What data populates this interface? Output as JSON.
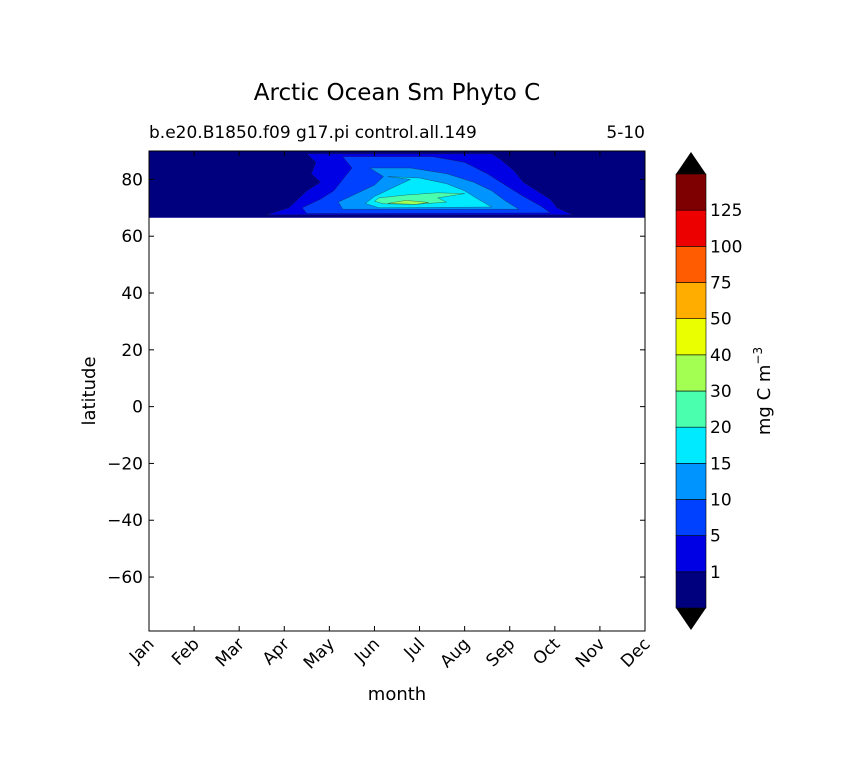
{
  "chart_data": {
    "type": "heatmap",
    "title": "Arctic Ocean Sm Phyto C",
    "subtitle_left": "b.e20.B1850.f09 g17.pi control.all.149",
    "subtitle_right": "5-10",
    "xlabel": "month",
    "ylabel": "latitude",
    "x_categories": [
      "Jan",
      "Feb",
      "Mar",
      "Apr",
      "May",
      "Jun",
      "Jul",
      "Aug",
      "Sep",
      "Oct",
      "Nov",
      "Dec"
    ],
    "y_ticks": [
      80,
      60,
      40,
      20,
      0,
      -20,
      -40,
      -60
    ],
    "y_tick_labels": [
      "80",
      "60",
      "40",
      "20",
      "0",
      "−20",
      "−40",
      "−60"
    ],
    "ylim": [
      -79,
      90
    ],
    "data_lat_range": [
      66.5,
      90
    ],
    "colorbar": {
      "label": "mg C m",
      "label_sup": "−3",
      "levels": [
        0,
        1,
        5,
        10,
        15,
        20,
        30,
        40,
        50,
        75,
        100,
        125,
        150
      ],
      "tick_labels": [
        "1",
        "5",
        "10",
        "15",
        "20",
        "30",
        "40",
        "50",
        "75",
        "100",
        "125"
      ],
      "colors": [
        "#00007f",
        "#0000e5",
        "#0041ff",
        "#0094ff",
        "#00eaff",
        "#4affad",
        "#a4ff53",
        "#eaff00",
        "#ffae00",
        "#ff5b00",
        "#ed0000",
        "#7f0000"
      ],
      "extend_min_color": "#000000",
      "extend_max_color": "#000000"
    },
    "contours": [
      {
        "level_index": 1,
        "points": [
          [
            3.5,
            89
          ],
          [
            3.7,
            86
          ],
          [
            3.6,
            82
          ],
          [
            3.8,
            79
          ],
          [
            3.5,
            76
          ],
          [
            3.3,
            73
          ],
          [
            3.1,
            70
          ],
          [
            2.6,
            67.5
          ],
          [
            9.4,
            67.5
          ],
          [
            9.05,
            70
          ],
          [
            8.9,
            73
          ],
          [
            8.6,
            76
          ],
          [
            8.3,
            79
          ],
          [
            8.1,
            83
          ],
          [
            7.8,
            87
          ],
          [
            7.6,
            89
          ]
        ]
      },
      {
        "level_index": 2,
        "points": [
          [
            4.3,
            88
          ],
          [
            4.5,
            84
          ],
          [
            4.3,
            80
          ],
          [
            4.1,
            76
          ],
          [
            3.8,
            73
          ],
          [
            3.4,
            70
          ],
          [
            3.5,
            68
          ],
          [
            8.9,
            68.2
          ],
          [
            8.7,
            70.5
          ],
          [
            8.3,
            74
          ],
          [
            7.9,
            78
          ],
          [
            7.5,
            82
          ],
          [
            7.0,
            86
          ],
          [
            6.3,
            88
          ]
        ]
      },
      {
        "level_index": 3,
        "points": [
          [
            4.9,
            84
          ],
          [
            5.2,
            81
          ],
          [
            5.0,
            78
          ],
          [
            4.6,
            75
          ],
          [
            4.2,
            72
          ],
          [
            4.3,
            69.5
          ],
          [
            8.2,
            69.5
          ],
          [
            7.9,
            72.5
          ],
          [
            7.6,
            76
          ],
          [
            7.2,
            79
          ],
          [
            6.6,
            82
          ],
          [
            5.8,
            84
          ]
        ]
      },
      {
        "level_index": 4,
        "points": [
          [
            5.3,
            81
          ],
          [
            5.8,
            80
          ],
          [
            5.4,
            77
          ],
          [
            5.0,
            74
          ],
          [
            4.8,
            71.5
          ],
          [
            5.1,
            70
          ],
          [
            7.6,
            70.3
          ],
          [
            7.3,
            73
          ],
          [
            7.0,
            76
          ],
          [
            6.6,
            78.5
          ],
          [
            6.0,
            80.5
          ]
        ]
      },
      {
        "level_index": 5,
        "points": [
          [
            5.1,
            73.5
          ],
          [
            5.7,
            74.5
          ],
          [
            6.4,
            75.3
          ],
          [
            7.0,
            75
          ],
          [
            6.4,
            73.5
          ],
          [
            6.6,
            72
          ],
          [
            5.9,
            71.2
          ],
          [
            5.2,
            71.4
          ],
          [
            5.0,
            72.3
          ]
        ]
      },
      {
        "level_index": 6,
        "points": [
          [
            5.3,
            71.6
          ],
          [
            5.7,
            72.6
          ],
          [
            6.2,
            71.9
          ],
          [
            5.9,
            71.2
          ]
        ]
      }
    ]
  }
}
